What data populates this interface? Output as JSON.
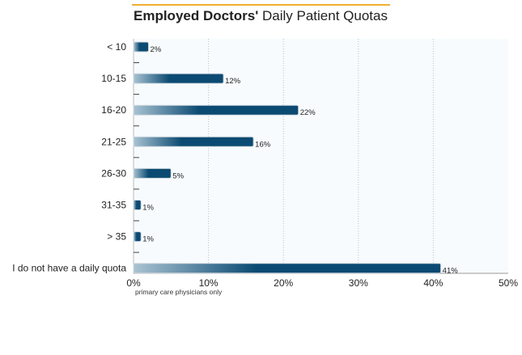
{
  "chart_data": {
    "type": "bar",
    "orientation": "horizontal",
    "title_bold": "Employed Doctors'",
    "title_rest": "Daily Patient Quotas",
    "categories": [
      "< 10",
      "10-15",
      "16-20",
      "21-25",
      "26-30",
      "31-35",
      "> 35",
      "I do not have a daily quota"
    ],
    "values": [
      2,
      12,
      22,
      16,
      5,
      1,
      1,
      41
    ],
    "data_labels": [
      "2%",
      "12%",
      "22%",
      "16%",
      "5%",
      "1%",
      "1%",
      "41%"
    ],
    "xlim": [
      0,
      50
    ],
    "x_ticks": [
      "0%",
      "10%",
      "20%",
      "30%",
      "40%",
      "50%"
    ],
    "note": "primary care physicians only",
    "grid": "vertical dotted",
    "colors": {
      "bar_dark": "#0b4a72",
      "bar_light": "#a9c3d3",
      "title_rule": "#f0b030",
      "plot_bg": "#f7fbfe"
    }
  }
}
